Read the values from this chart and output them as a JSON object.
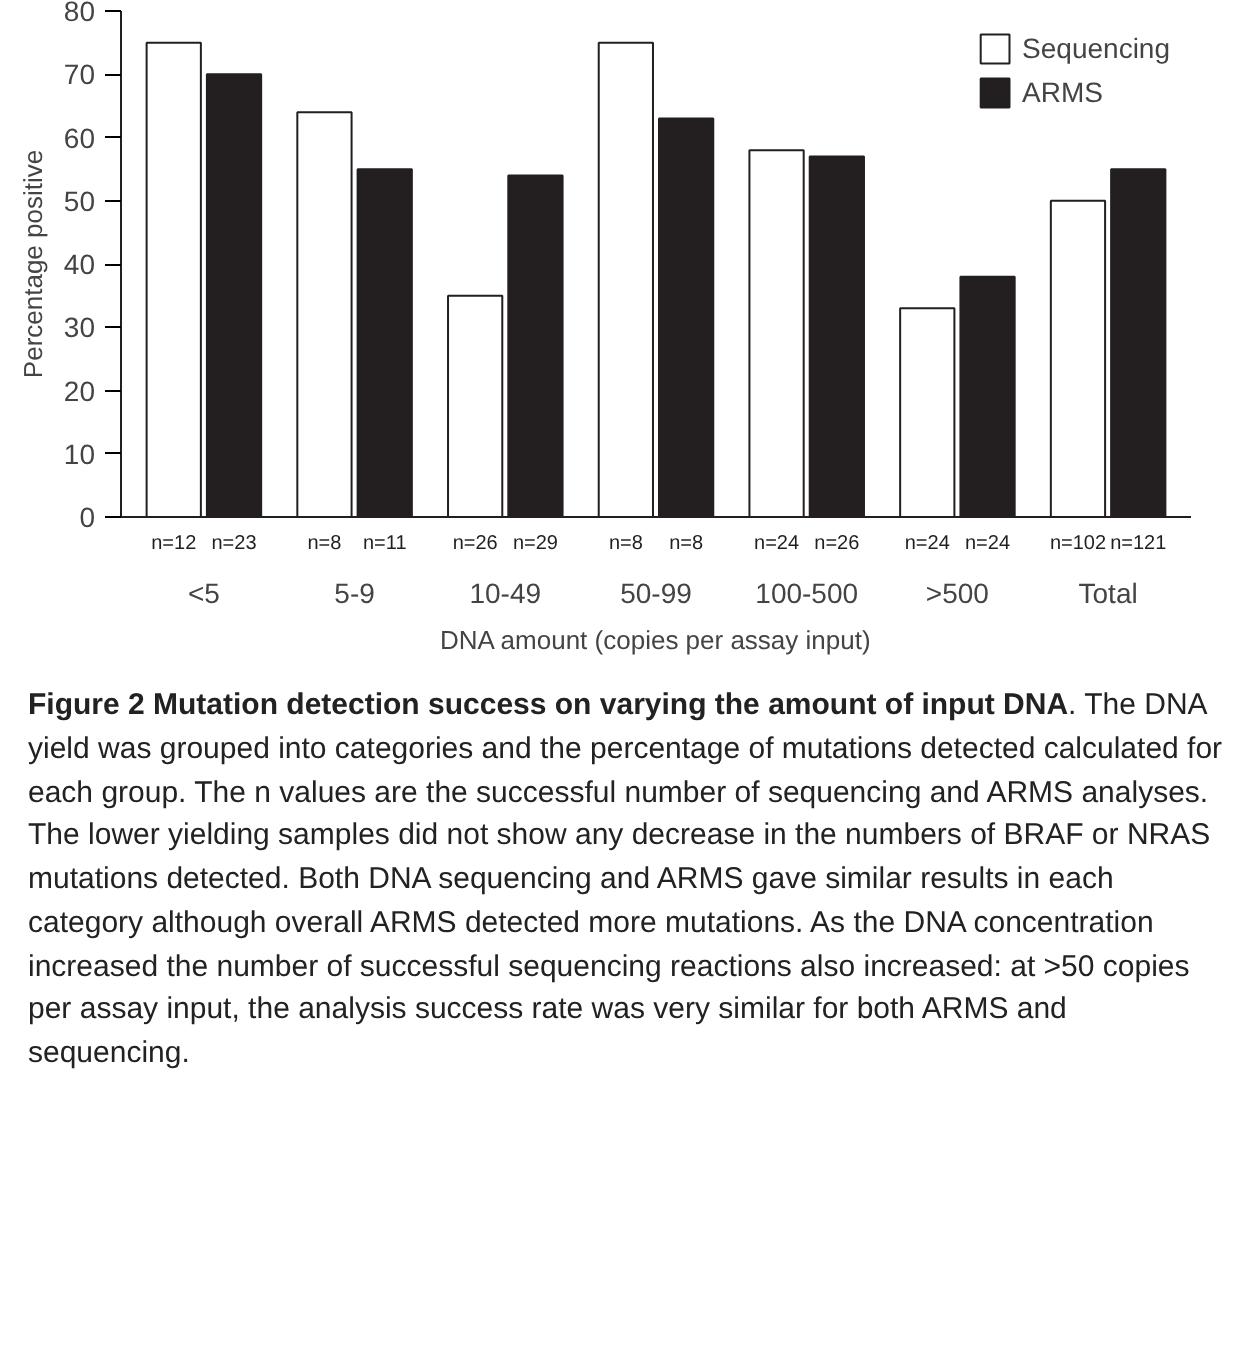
{
  "chart_data": {
    "type": "bar",
    "title": "Figure 2 Mutation detection success on varying the amount of input DNA",
    "xlabel": "DNA amount (copies per assay input)",
    "ylabel": "Percentage positive",
    "categories": [
      "<5",
      "5-9",
      "10-49",
      "50-99",
      "100-500",
      ">500",
      "Total"
    ],
    "series": [
      {
        "name": "Sequencing",
        "color": "#ffffff",
        "values": [
          75,
          64,
          35,
          75,
          58,
          33,
          50
        ]
      },
      {
        "name": "ARMS",
        "color": "#231f20",
        "values": [
          70,
          55,
          54,
          63,
          57,
          38,
          55
        ]
      }
    ],
    "ylim": [
      0,
      80
    ],
    "yticks": [
      0,
      10,
      20,
      30,
      40,
      50,
      60,
      70,
      80
    ],
    "grid": false,
    "legend": "top right",
    "annotations": [
      "n=12",
      "n=23",
      "n=8",
      "n=11",
      "n=26",
      "n=29",
      "n=8",
      "n=8",
      "n=24",
      "n=26",
      "n=24",
      "n=24",
      "n=102",
      "n=121",
      ". The DNA yield was grouped into categories and the percentage of mutations detected calculated for each group. The n values are the successful number of sequencing and ARMS analyses. The lower yielding samples did not show any decrease in the numbers of BRAF or NRAS mutations detected. Both DNA sequencing and ARMS gave similar results in each category although overall ARMS detected more mutations. As the DNA concentration increased the number of successful sequencing reactions also increased: at >50 copies per assay input, the analysis success rate was very similar for both ARMS and sequencing."
    ]
  }
}
